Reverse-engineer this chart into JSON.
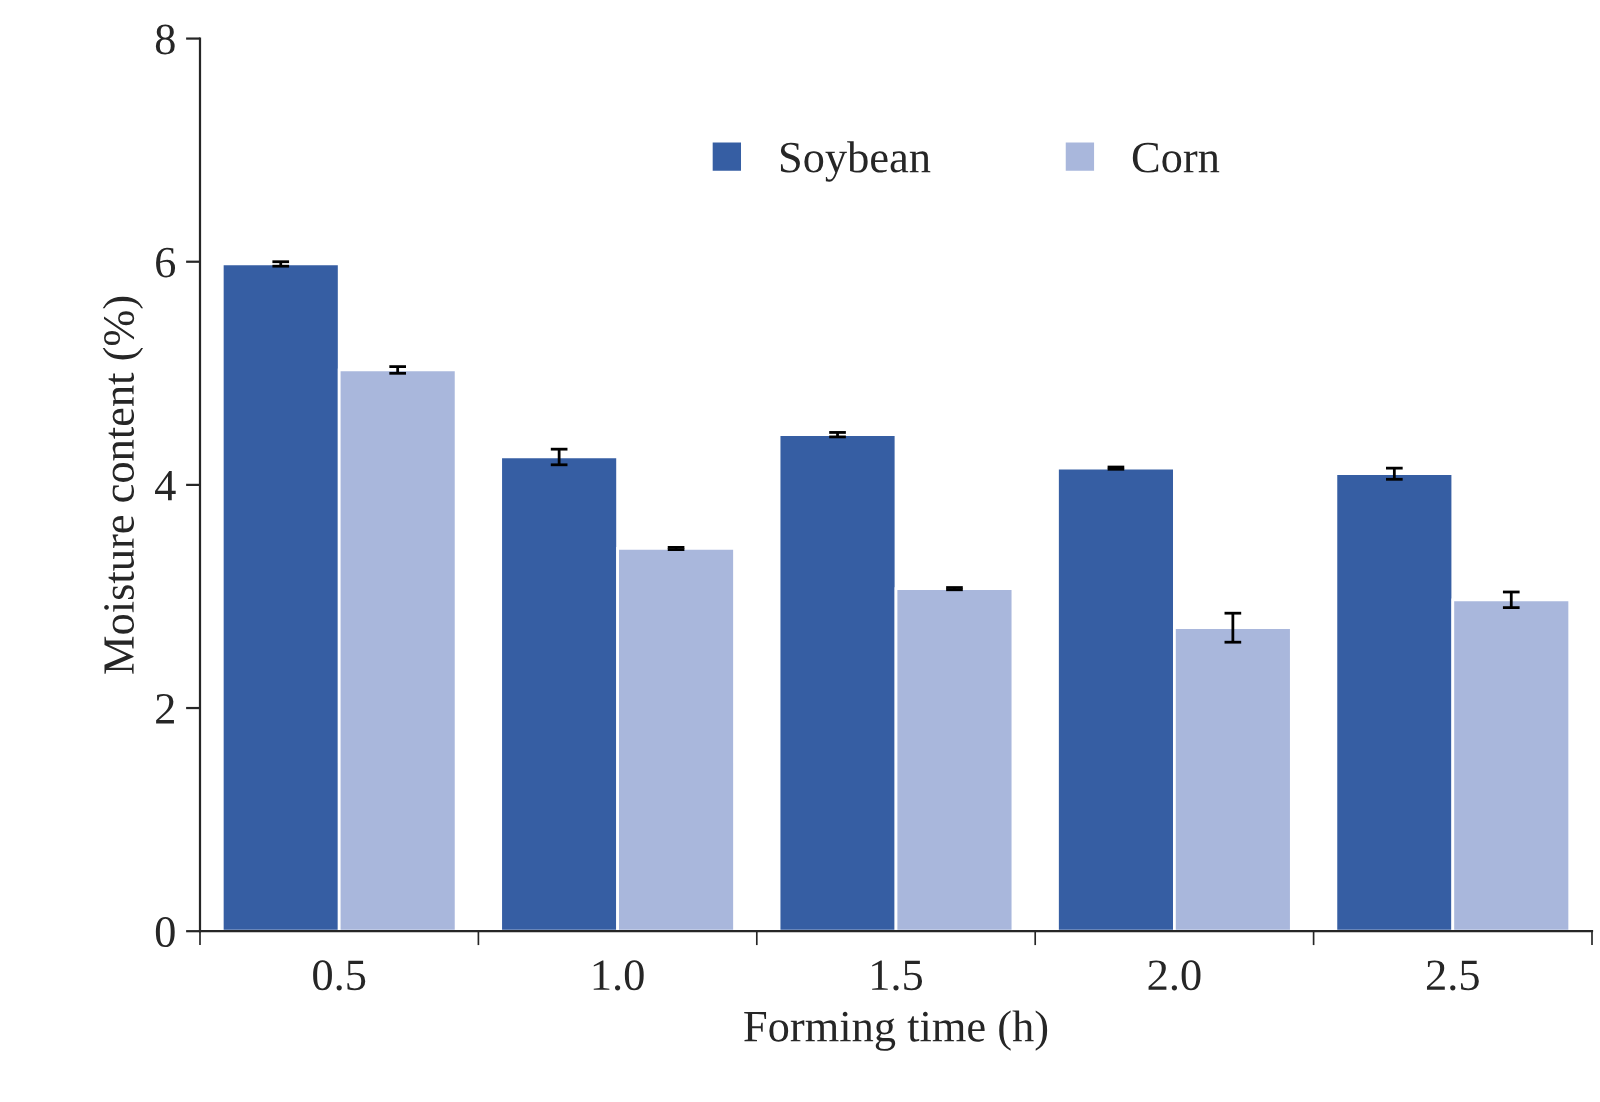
{
  "chart_data": {
    "type": "bar",
    "xlabel": "Forming time (h)",
    "ylabel": "Moisture content (%)",
    "categories": [
      "0.5",
      "1.0",
      "1.5",
      "2.0",
      "2.5"
    ],
    "series": [
      {
        "name": "Soybean",
        "color": "#365ea3",
        "values": [
          5.98,
          4.25,
          4.45,
          4.15,
          4.1
        ],
        "errors": [
          0.02,
          0.07,
          0.02,
          0.01,
          0.05
        ]
      },
      {
        "name": "Corn",
        "color": "#a9b7dc",
        "values": [
          5.03,
          3.43,
          3.07,
          2.72,
          2.97
        ],
        "errors": [
          0.03,
          0.01,
          0.01,
          0.13,
          0.07
        ]
      }
    ],
    "ylim": [
      0,
      8
    ],
    "yticks": [
      0,
      2,
      4,
      6,
      8
    ],
    "grid": false,
    "legend": "top"
  }
}
